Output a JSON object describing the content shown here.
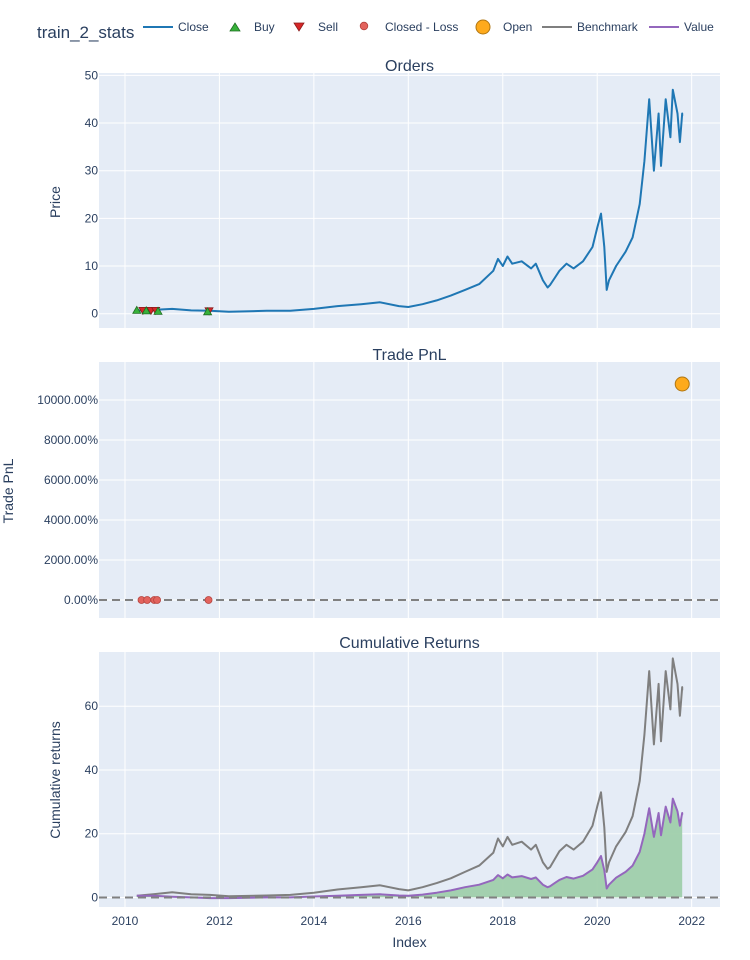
{
  "title": "train_2_stats",
  "legend": [
    {
      "name": "Close",
      "symbol": "line",
      "color": "#1f77b4"
    },
    {
      "name": "Buy",
      "symbol": "triangle-up",
      "color": "#37b13a"
    },
    {
      "name": "Sell",
      "symbol": "triangle-down",
      "color": "#d62728"
    },
    {
      "name": "Closed - Loss",
      "symbol": "circle-small",
      "color": "#e3635d"
    },
    {
      "name": "Open",
      "symbol": "circle-large",
      "color": "#feaa1c"
    },
    {
      "name": "Benchmark",
      "symbol": "line",
      "color": "#7f7f7f"
    },
    {
      "name": "Value",
      "symbol": "line",
      "color": "#9467bd"
    }
  ],
  "colors": {
    "plot_bg": "#e5ecf6",
    "grid": "#ffffff",
    "text": "#2a3f5f",
    "close": "#1f77b4",
    "benchmark": "#7f7f7f",
    "value": "#9467bd",
    "fill": "#9fcfab",
    "zero_line": "#808080"
  },
  "chart_data": [
    {
      "type": "line",
      "title": "Orders",
      "ylabel": "Price",
      "xlim": [
        2009.45,
        2022.6
      ],
      "ylim": [
        -3,
        50.5
      ],
      "yticks": [
        0,
        10,
        20,
        30,
        40,
        50
      ],
      "x_ticks": [
        2010,
        2012,
        2014,
        2016,
        2018,
        2020,
        2022
      ],
      "series": [
        {
          "name": "Close",
          "x": [
            2010.2,
            2010.6,
            2011.0,
            2011.4,
            2011.8,
            2012.2,
            2013.0,
            2013.5,
            2014.0,
            2014.5,
            2015.0,
            2015.4,
            2015.8,
            2016.0,
            2016.3,
            2016.6,
            2016.9,
            2017.2,
            2017.5,
            2017.8,
            2017.9,
            2018.0,
            2018.1,
            2018.2,
            2018.4,
            2018.6,
            2018.7,
            2018.85,
            2018.95,
            2019.0,
            2019.1,
            2019.2,
            2019.35,
            2019.5,
            2019.7,
            2019.9,
            2020.0,
            2020.08,
            2020.15,
            2020.2,
            2020.25,
            2020.4,
            2020.6,
            2020.75,
            2020.9,
            2021.0,
            2021.1,
            2021.2,
            2021.3,
            2021.35,
            2021.45,
            2021.55,
            2021.6,
            2021.7,
            2021.75,
            2021.8,
            2021.8
          ],
          "values": [
            0.6,
            0.8,
            1.0,
            0.7,
            0.6,
            0.4,
            0.6,
            0.6,
            1.0,
            1.6,
            2.0,
            2.4,
            1.6,
            1.4,
            2.0,
            2.8,
            3.8,
            5.0,
            6.2,
            9.0,
            11.5,
            10.0,
            12.0,
            10.5,
            11.0,
            9.5,
            10.5,
            7.0,
            5.5,
            6.0,
            7.5,
            9.0,
            10.5,
            9.5,
            11.0,
            14.0,
            18.0,
            21.0,
            14.0,
            5.0,
            7.0,
            10.0,
            13.0,
            16.0,
            23.0,
            32.0,
            45.0,
            30.0,
            42.0,
            31.0,
            45.0,
            37.0,
            47.0,
            42.0,
            36.0,
            42.0,
            41.5
          ]
        }
      ],
      "markers": {
        "buy": [
          {
            "x": 2010.25,
            "y": 0.8
          },
          {
            "x": 2010.45,
            "y": 0.7
          },
          {
            "x": 2010.7,
            "y": 0.6
          },
          {
            "x": 2011.75,
            "y": 0.5
          }
        ],
        "sell": [
          {
            "x": 2010.38,
            "y": 0.6
          },
          {
            "x": 2010.55,
            "y": 0.6
          },
          {
            "x": 2010.65,
            "y": 0.6
          },
          {
            "x": 2011.78,
            "y": 0.5
          }
        ]
      }
    },
    {
      "type": "scatter",
      "title": "Trade PnL",
      "ylabel": "Trade PnL",
      "xlim": [
        2009.45,
        2022.6
      ],
      "ylim": [
        -900,
        11900
      ],
      "yticks": [
        0,
        2000,
        4000,
        6000,
        8000,
        10000
      ],
      "ytick_labels": [
        "0.00%",
        "2000.00%",
        "4000.00%",
        "6000.00%",
        "8000.00%",
        "10000.00%"
      ],
      "x_ticks": [
        2010,
        2012,
        2014,
        2016,
        2018,
        2020,
        2022
      ],
      "series": [
        {
          "name": "Closed - Loss",
          "x": [
            2010.35,
            2010.47,
            2010.62,
            2010.68,
            2011.77
          ],
          "values": [
            0,
            0,
            0,
            0,
            0
          ]
        },
        {
          "name": "Open",
          "x": [
            2021.8
          ],
          "values": [
            10800
          ]
        }
      ]
    },
    {
      "type": "line",
      "title": "Cumulative Returns",
      "ylabel": "Cumulative returns",
      "xlabel": "Index",
      "xlim": [
        2009.45,
        2022.6
      ],
      "ylim": [
        -3,
        77
      ],
      "yticks": [
        0,
        20,
        40,
        60
      ],
      "x_ticks": [
        2010,
        2012,
        2014,
        2016,
        2018,
        2020,
        2022
      ],
      "series": [
        {
          "name": "Benchmark",
          "x": [
            2010.25,
            2010.6,
            2011.0,
            2011.4,
            2011.8,
            2012.2,
            2013.0,
            2013.5,
            2014.0,
            2014.5,
            2015.0,
            2015.4,
            2015.8,
            2016.0,
            2016.3,
            2016.6,
            2016.9,
            2017.2,
            2017.5,
            2017.8,
            2017.9,
            2018.0,
            2018.1,
            2018.2,
            2018.4,
            2018.6,
            2018.7,
            2018.85,
            2018.95,
            2019.0,
            2019.1,
            2019.2,
            2019.35,
            2019.5,
            2019.7,
            2019.9,
            2020.0,
            2020.08,
            2020.15,
            2020.2,
            2020.25,
            2020.4,
            2020.6,
            2020.75,
            2020.9,
            2021.0,
            2021.1,
            2021.2,
            2021.3,
            2021.35,
            2021.45,
            2021.55,
            2021.6,
            2021.7,
            2021.75,
            2021.8,
            2021.8
          ],
          "values": [
            0.5,
            1.0,
            1.6,
            1.0,
            0.8,
            0.4,
            0.6,
            0.8,
            1.5,
            2.5,
            3.2,
            3.8,
            2.6,
            2.2,
            3.2,
            4.5,
            6.0,
            8.0,
            10.0,
            14.0,
            18.5,
            16.0,
            19.0,
            16.5,
            17.5,
            15.0,
            16.5,
            11.0,
            9.0,
            9.5,
            12.0,
            14.5,
            16.5,
            15.0,
            17.5,
            22.5,
            28.5,
            33.0,
            22.0,
            8.0,
            11.0,
            16.0,
            20.5,
            25.5,
            36.5,
            51.0,
            71.0,
            48.0,
            67.0,
            49.0,
            71.0,
            59.0,
            75.0,
            67.0,
            57.0,
            66.0,
            65.0
          ]
        },
        {
          "name": "Value",
          "x": [
            2010.25,
            2010.6,
            2011.0,
            2011.4,
            2011.8,
            2012.2,
            2013.0,
            2013.5,
            2014.0,
            2014.5,
            2015.0,
            2015.4,
            2015.8,
            2016.0,
            2016.3,
            2016.6,
            2016.9,
            2017.2,
            2017.5,
            2017.8,
            2017.9,
            2018.0,
            2018.1,
            2018.2,
            2018.4,
            2018.6,
            2018.7,
            2018.85,
            2018.95,
            2019.0,
            2019.1,
            2019.2,
            2019.35,
            2019.5,
            2019.7,
            2019.9,
            2020.0,
            2020.08,
            2020.15,
            2020.2,
            2020.25,
            2020.4,
            2020.6,
            2020.75,
            2020.9,
            2021.0,
            2021.1,
            2021.2,
            2021.3,
            2021.35,
            2021.45,
            2021.55,
            2021.6,
            2021.7,
            2021.75,
            2021.8,
            2021.8
          ],
          "values": [
            0.5,
            0.5,
            0.2,
            0.0,
            -0.2,
            -0.2,
            0.0,
            0.0,
            0.3,
            0.5,
            0.8,
            1.0,
            0.6,
            0.5,
            0.9,
            1.5,
            2.2,
            3.2,
            4.0,
            5.5,
            7.0,
            6.0,
            7.2,
            6.3,
            6.7,
            5.8,
            6.3,
            4.0,
            3.2,
            3.5,
            4.5,
            5.5,
            6.4,
            5.9,
            6.8,
            8.8,
            11.0,
            13.0,
            8.5,
            2.8,
            4.0,
            6.2,
            8.0,
            10.0,
            14.3,
            20.0,
            28.0,
            19.0,
            26.5,
            19.5,
            28.5,
            23.5,
            31.0,
            27.0,
            22.5,
            26.5,
            26.0
          ]
        }
      ]
    }
  ]
}
